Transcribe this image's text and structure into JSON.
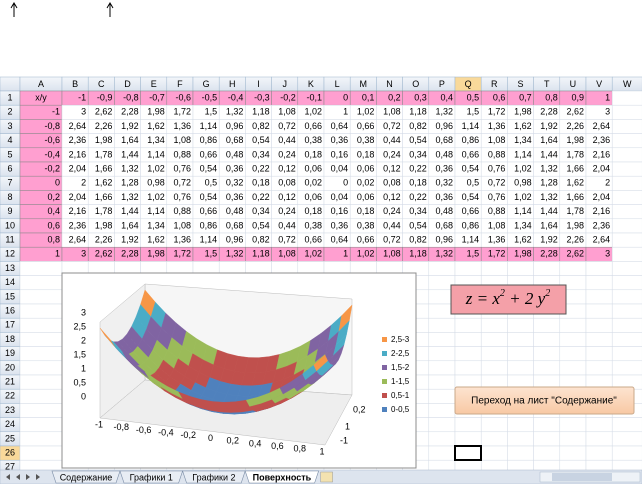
{
  "sheet": {
    "column_headers": [
      "A",
      "B",
      "C",
      "D",
      "E",
      "F",
      "G",
      "H",
      "I",
      "J",
      "K",
      "L",
      "M",
      "N",
      "O",
      "P",
      "Q",
      "R",
      "S",
      "T",
      "U",
      "V",
      "W"
    ],
    "row_headers": [
      1,
      2,
      3,
      4,
      5,
      6,
      7,
      8,
      9,
      10,
      11,
      12,
      13,
      14,
      15,
      16,
      17,
      18,
      19,
      20,
      21,
      22,
      23,
      24,
      25,
      26,
      27
    ],
    "cells": [
      [
        "x/y",
        "-1",
        "-0,9",
        "-0,8",
        "-0,7",
        "-0,6",
        "-0,5",
        "-0,4",
        "-0,3",
        "-0,2",
        "-0,1",
        "0",
        "0,1",
        "0,2",
        "0,3",
        "0,4",
        "0,5",
        "0,6",
        "0,7",
        "0,8",
        "0,9",
        "1"
      ],
      [
        "-1",
        "3",
        "2,62",
        "2,28",
        "1,98",
        "1,72",
        "1,5",
        "1,32",
        "1,18",
        "1,08",
        "1,02",
        "1",
        "1,02",
        "1,08",
        "1,18",
        "1,32",
        "1,5",
        "1,72",
        "1,98",
        "2,28",
        "2,62",
        "3"
      ],
      [
        "-0,8",
        "2,64",
        "2,26",
        "1,92",
        "1,62",
        "1,36",
        "1,14",
        "0,96",
        "0,82",
        "0,72",
        "0,66",
        "0,64",
        "0,66",
        "0,72",
        "0,82",
        "0,96",
        "1,14",
        "1,36",
        "1,62",
        "1,92",
        "2,26",
        "2,64"
      ],
      [
        "-0,6",
        "2,36",
        "1,98",
        "1,64",
        "1,34",
        "1,08",
        "0,86",
        "0,68",
        "0,54",
        "0,44",
        "0,38",
        "0,36",
        "0,38",
        "0,44",
        "0,54",
        "0,68",
        "0,86",
        "1,08",
        "1,34",
        "1,64",
        "1,98",
        "2,36"
      ],
      [
        "-0,4",
        "2,16",
        "1,78",
        "1,44",
        "1,14",
        "0,88",
        "0,66",
        "0,48",
        "0,34",
        "0,24",
        "0,18",
        "0,16",
        "0,18",
        "0,24",
        "0,34",
        "0,48",
        "0,66",
        "0,88",
        "1,14",
        "1,44",
        "1,78",
        "2,16"
      ],
      [
        "-0,2",
        "2,04",
        "1,66",
        "1,32",
        "1,02",
        "0,76",
        "0,54",
        "0,36",
        "0,22",
        "0,12",
        "0,06",
        "0,04",
        "0,06",
        "0,12",
        "0,22",
        "0,36",
        "0,54",
        "0,76",
        "1,02",
        "1,32",
        "1,66",
        "2,04"
      ],
      [
        "0",
        "2",
        "1,62",
        "1,28",
        "0,98",
        "0,72",
        "0,5",
        "0,32",
        "0,18",
        "0,08",
        "0,02",
        "0",
        "0,02",
        "0,08",
        "0,18",
        "0,32",
        "0,5",
        "0,72",
        "0,98",
        "1,28",
        "1,62",
        "2"
      ],
      [
        "0,2",
        "2,04",
        "1,66",
        "1,32",
        "1,02",
        "0,76",
        "0,54",
        "0,36",
        "0,22",
        "0,12",
        "0,06",
        "0,04",
        "0,06",
        "0,12",
        "0,22",
        "0,36",
        "0,54",
        "0,76",
        "1,02",
        "1,32",
        "1,66",
        "2,04"
      ],
      [
        "0,4",
        "2,16",
        "1,78",
        "1,44",
        "1,14",
        "0,88",
        "0,66",
        "0,48",
        "0,34",
        "0,24",
        "0,18",
        "0,16",
        "0,18",
        "0,24",
        "0,34",
        "0,48",
        "0,66",
        "0,88",
        "1,14",
        "1,44",
        "1,78",
        "2,16"
      ],
      [
        "0,6",
        "2,36",
        "1,98",
        "1,64",
        "1,34",
        "1,08",
        "0,86",
        "0,68",
        "0,54",
        "0,44",
        "0,38",
        "0,36",
        "0,38",
        "0,44",
        "0,54",
        "0,68",
        "0,86",
        "1,08",
        "1,34",
        "1,64",
        "1,98",
        "2,36"
      ],
      [
        "0,8",
        "2,64",
        "2,26",
        "1,92",
        "1,62",
        "1,36",
        "1,14",
        "0,96",
        "0,82",
        "0,72",
        "0,66",
        "0,64",
        "0,66",
        "0,72",
        "0,82",
        "0,96",
        "1,14",
        "1,36",
        "1,62",
        "1,92",
        "2,26",
        "2,64"
      ],
      [
        "1",
        "3",
        "2,62",
        "2,28",
        "1,98",
        "1,72",
        "1,5",
        "1,32",
        "1,18",
        "1,08",
        "1,02",
        "1",
        "1,02",
        "1,08",
        "1,18",
        "1,32",
        "1,5",
        "1,72",
        "1,98",
        "2,28",
        "2,62",
        "3"
      ]
    ]
  },
  "chart": {
    "z_axis_labels": [
      "3",
      "2,5",
      "2",
      "1,5",
      "1",
      "0,5",
      "0"
    ],
    "x_axis_labels": [
      "-1",
      "-0,8",
      "-0,6",
      "-0,4",
      "-0,2",
      "0",
      "0,2",
      "0,4",
      "0,6",
      "0,8",
      "1"
    ],
    "depth_axis_labels": [
      "0,2",
      "1",
      "-1"
    ],
    "legend": [
      {
        "label": "2,5-3",
        "color": "#f79646"
      },
      {
        "label": "2-2,5",
        "color": "#4bacc6"
      },
      {
        "label": "1,5-2",
        "color": "#8064a2"
      },
      {
        "label": "1-1,5",
        "color": "#9bbb59"
      },
      {
        "label": "0,5-1",
        "color": "#c0504d"
      },
      {
        "label": "0-0,5",
        "color": "#4f81bd"
      }
    ]
  },
  "formula": [
    "z = x",
    "2",
    " + 2 y",
    "2"
  ],
  "button": {
    "label": "Переход на лист \"Содержание\""
  },
  "tabs": [
    "Содержание",
    "Графики 1",
    "Графики 2",
    "Поверхность"
  ]
}
